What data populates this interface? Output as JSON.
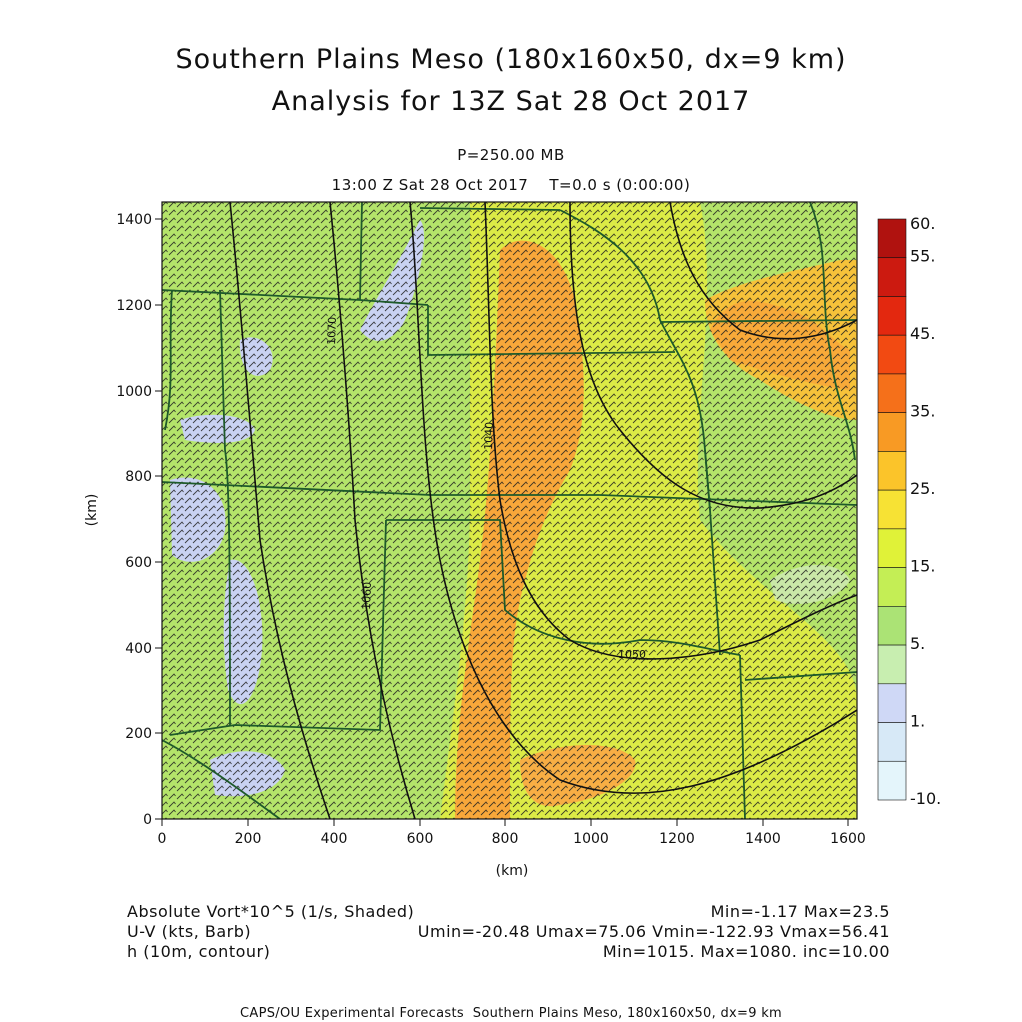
{
  "header": {
    "title_line1": "Southern Plains Meso (180x160x50, dx=9 km)",
    "title_line2": "Analysis for 13Z Sat 28 Oct 2017",
    "pressure_label": "P=250.00 MB",
    "time_label": "13:00 Z Sat 28 Oct 2017    T=0.0 s (0:00:00)"
  },
  "axes": {
    "x_unit": "(km)",
    "y_unit": "(km)",
    "x_ticks": [
      "0",
      "200",
      "400",
      "600",
      "800",
      "1000",
      "1200",
      "1400",
      "1600"
    ],
    "y_ticks": [
      "0",
      "200",
      "400",
      "600",
      "800",
      "1000",
      "1200",
      "1400"
    ],
    "x_range_km": [
      0,
      1620
    ],
    "y_range_km": [
      0,
      1440
    ]
  },
  "colorbar": {
    "labels": [
      "60.",
      "55.",
      "45.",
      "35.",
      "25.",
      "15.",
      "5.",
      "1.",
      "-10."
    ],
    "colors": [
      "#b0120f",
      "#cc1a10",
      "#e3280f",
      "#f24a12",
      "#f5701a",
      "#f89a24",
      "#fbc42a",
      "#f7e234",
      "#e0f238",
      "#c4ee55",
      "#abe375",
      "#c8eeb0",
      "#cfd8f6",
      "#d7e9f7",
      "#e4f5fb"
    ]
  },
  "field_colors": {
    "background": "#b4e46a",
    "jet_core": "#f8a73a",
    "yellow_band": "#e8ef3e",
    "low_vorticity": "#c9d2f2",
    "state_lines": "#1e5a2a",
    "contours": "#111111",
    "barbs": "#202020"
  },
  "contour_labels": [
    "1070",
    "1060",
    "1040",
    "1050"
  ],
  "legend": {
    "row1_left": "Absolute Vort*10^5 (1/s, Shaded)",
    "row1_right": "Min=-1.17 Max=23.5",
    "row2_left": "U-V (kts, Barb)",
    "row2_right": "Umin=-20.48 Umax=75.06 Vmin=-122.93 Vmax=56.41",
    "row3_left": "h (10m, contour)",
    "row3_right": "Min=1015. Max=1080. inc=10.00"
  },
  "footer": "CAPS/OU Experimental Forecasts  Southern Plains Meso, 180x160x50, dx=9 km"
}
